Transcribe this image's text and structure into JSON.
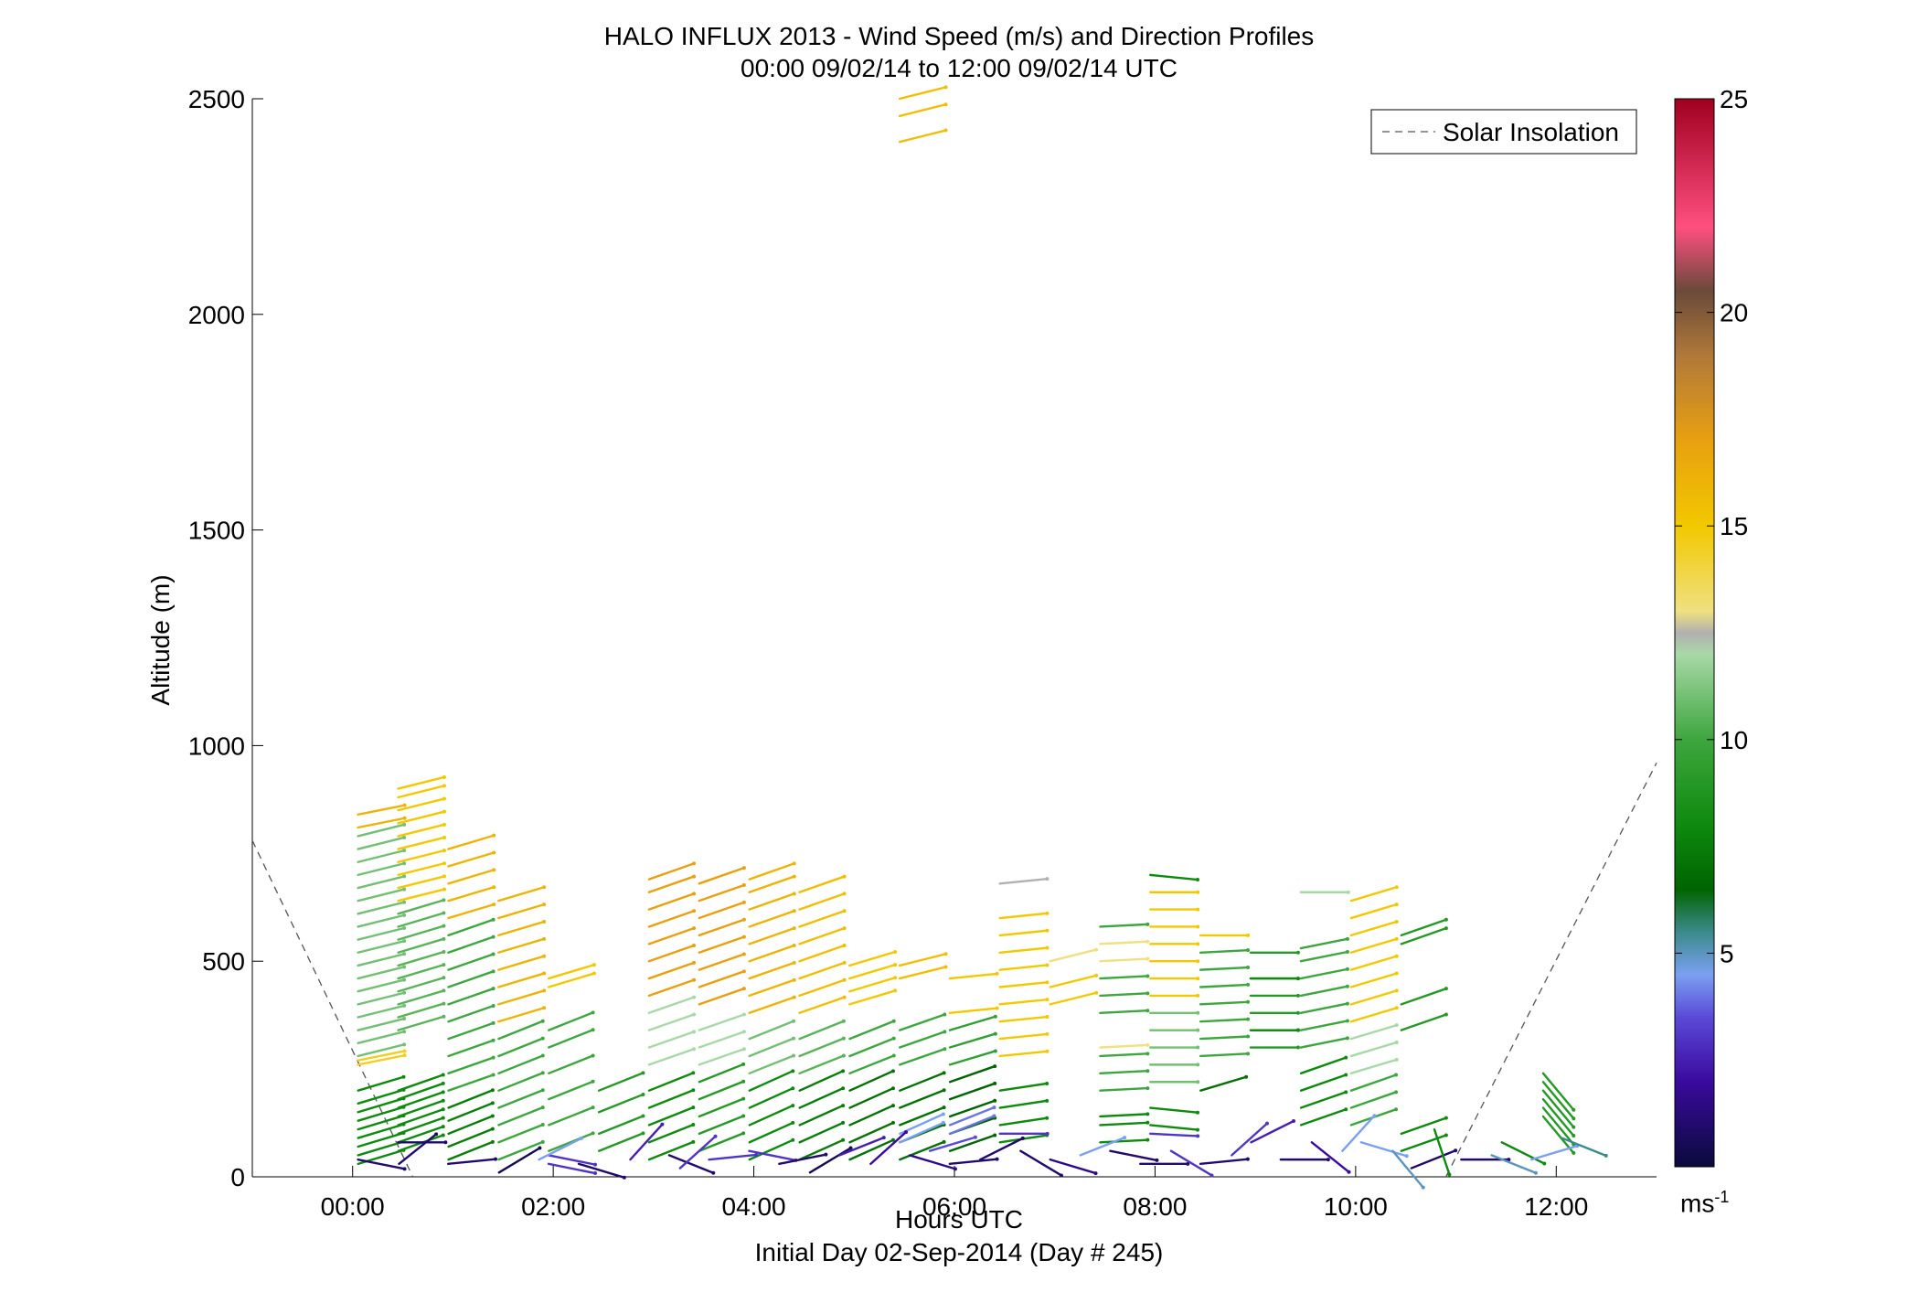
{
  "title_line1": "HALO INFLUX 2013 - Wind Speed (m/s) and Direction Profiles",
  "title_line2": "00:00 09/02/14 to 12:00 09/02/14  UTC",
  "footer": "Initial Day 02-Sep-2014 (Day # 245)",
  "colorbar_unit": "ms",
  "colorbar_unit_sup": "-1",
  "chart_data": {
    "type": "wind-barb profile",
    "xlabel": "Hours UTC",
    "ylabel": "Altitude (m)",
    "xlim": [
      -1,
      13
    ],
    "ylim": [
      0,
      2500
    ],
    "x_ticks": [
      0,
      2,
      4,
      6,
      8,
      10,
      12
    ],
    "x_tick_labels": [
      "00:00",
      "02:00",
      "04:00",
      "06:00",
      "08:00",
      "10:00",
      "12:00"
    ],
    "y_ticks": [
      0,
      500,
      1000,
      1500,
      2000,
      2500
    ],
    "y_tick_labels": [
      "0",
      "500",
      "1000",
      "1500",
      "2000",
      "2500"
    ],
    "legend": {
      "position": "top-right",
      "entries": [
        "Solar Insolation"
      ]
    },
    "colorbar": {
      "range": [
        0,
        25
      ],
      "ticks": [
        5,
        10,
        15,
        20,
        25
      ],
      "tick_labels": [
        "5",
        "10",
        "15",
        "20",
        "25"
      ],
      "stops": [
        {
          "v": 0,
          "c": "#0a0a3c"
        },
        {
          "v": 2,
          "c": "#3a0a9e"
        },
        {
          "v": 3.5,
          "c": "#5a4ad8"
        },
        {
          "v": 4.5,
          "c": "#7aa0f0"
        },
        {
          "v": 5.5,
          "c": "#3a8a8a"
        },
        {
          "v": 6.5,
          "c": "#006400"
        },
        {
          "v": 8,
          "c": "#0e8a0e"
        },
        {
          "v": 10,
          "c": "#3ea63e"
        },
        {
          "v": 12,
          "c": "#a8d8a8"
        },
        {
          "v": 12.5,
          "c": "#b0b0b0"
        },
        {
          "v": 13,
          "c": "#f0e080"
        },
        {
          "v": 15,
          "c": "#f2c800"
        },
        {
          "v": 17,
          "c": "#e8a010"
        },
        {
          "v": 19,
          "c": "#b0783a"
        },
        {
          "v": 20.5,
          "c": "#6a4a3a"
        },
        {
          "v": 22,
          "c": "#ff4f80"
        },
        {
          "v": 25,
          "c": "#a00020"
        }
      ]
    },
    "solar_insolation": [
      {
        "x": -1,
        "y": 780
      },
      {
        "x": 0.6,
        "y": 0
      },
      {
        "x": 10.9,
        "y": 0
      },
      {
        "x": 13,
        "y": 960
      }
    ],
    "profiles": [
      {
        "t": 0.1,
        "speed": 14.5,
        "slope": 0.2,
        "alts": [
          260,
          270
        ],
        "extra": [
          {
            "y": 810,
            "s": 16
          },
          {
            "y": 840,
            "s": 16
          }
        ]
      },
      {
        "t": 0.1,
        "speed": 11,
        "slope": 0.25,
        "alts": [
          280,
          310,
          340,
          370,
          400,
          430,
          460,
          490,
          520,
          550,
          580,
          610,
          640,
          670,
          700,
          730,
          760,
          790
        ]
      },
      {
        "t": 0.1,
        "speed": 8,
        "slope": 0.3,
        "alts": [
          30,
          50,
          70,
          90,
          110,
          130,
          150,
          170,
          200
        ]
      },
      {
        "t": 0.1,
        "speed": 1,
        "slope": -0.2,
        "alts": [
          40
        ]
      },
      {
        "t": 0.5,
        "speed": 15,
        "slope": 0.25,
        "alts": [
          640,
          670,
          700,
          730,
          760,
          790,
          820,
          850,
          880,
          900
        ]
      },
      {
        "t": 0.5,
        "speed": 10.5,
        "slope": 0.3,
        "alts": [
          340,
          370,
          400,
          430,
          460,
          490,
          520,
          550,
          580,
          610
        ]
      },
      {
        "t": 0.5,
        "speed": 8,
        "slope": 0.35,
        "alts": [
          60,
          80,
          100,
          120,
          140,
          160,
          180,
          200
        ]
      },
      {
        "t": 0.5,
        "speed": 1,
        "slope": 0,
        "alts": [
          80
        ]
      },
      {
        "t": 1.0,
        "speed": 16,
        "slope": 0.3,
        "alts": [
          600,
          640,
          680,
          720,
          760
        ]
      },
      {
        "t": 1.0,
        "speed": 10,
        "slope": 0.35,
        "alts": [
          200,
          240,
          280,
          320,
          360,
          400,
          440,
          480,
          520,
          560
        ]
      },
      {
        "t": 1.0,
        "speed": 7.5,
        "slope": 0.4,
        "alts": [
          40,
          70,
          100,
          130,
          160
        ]
      },
      {
        "t": 1.5,
        "speed": 16,
        "slope": 0.3,
        "alts": [
          360,
          400,
          440,
          480,
          520,
          560,
          600,
          640
        ]
      },
      {
        "t": 1.5,
        "speed": 10,
        "slope": 0.4,
        "alts": [
          40,
          80,
          120,
          160,
          200,
          240,
          280,
          320
        ]
      },
      {
        "t": 2.0,
        "speed": 15,
        "slope": 0.3,
        "alts": [
          440,
          460
        ]
      },
      {
        "t": 2.0,
        "speed": 10,
        "slope": 0.4,
        "alts": [
          60,
          120,
          180,
          240,
          300,
          340
        ]
      },
      {
        "t": 2.0,
        "speed": 3,
        "slope": -0.2,
        "alts": [
          30,
          50
        ]
      },
      {
        "t": 2.5,
        "speed": 9,
        "slope": 0.4,
        "alts": [
          60,
          100,
          150,
          200
        ]
      },
      {
        "t": 3.0,
        "speed": 17,
        "slope": 0.35,
        "alts": [
          420,
          460,
          500,
          540,
          580,
          620,
          660,
          690
        ]
      },
      {
        "t": 3.0,
        "speed": 12,
        "slope": 0.35,
        "alts": [
          260,
          300,
          340,
          380
        ]
      },
      {
        "t": 3.0,
        "speed": 8,
        "slope": 0.4,
        "alts": [
          40,
          80,
          120,
          160,
          200
        ]
      },
      {
        "t": 3.5,
        "speed": 17,
        "slope": 0.35,
        "alts": [
          400,
          440,
          480,
          520,
          560,
          600,
          640,
          680
        ]
      },
      {
        "t": 3.5,
        "speed": 12,
        "slope": 0.35,
        "alts": [
          260,
          300,
          340
        ]
      },
      {
        "t": 3.5,
        "speed": 9,
        "slope": 0.4,
        "alts": [
          60,
          100,
          140,
          180,
          220
        ]
      },
      {
        "t": 4.0,
        "speed": 16,
        "slope": 0.35,
        "alts": [
          380,
          420,
          460,
          500,
          540,
          580,
          620,
          660,
          690
        ]
      },
      {
        "t": 4.0,
        "speed": 11,
        "slope": 0.4,
        "alts": [
          240,
          280,
          320
        ]
      },
      {
        "t": 4.0,
        "speed": 8,
        "slope": 0.45,
        "alts": [
          40,
          80,
          120,
          160,
          200
        ]
      },
      {
        "t": 4.5,
        "speed": 15.5,
        "slope": 0.35,
        "alts": [
          380,
          420,
          460,
          500,
          540,
          580,
          620,
          660
        ]
      },
      {
        "t": 4.5,
        "speed": 10.5,
        "slope": 0.4,
        "alts": [
          240,
          280,
          320
        ]
      },
      {
        "t": 4.5,
        "speed": 7.5,
        "slope": 0.45,
        "alts": [
          40,
          80,
          120,
          160,
          200
        ]
      },
      {
        "t": 5.0,
        "speed": 15,
        "slope": 0.3,
        "alts": [
          400,
          430,
          460,
          490
        ]
      },
      {
        "t": 5.0,
        "speed": 10,
        "slope": 0.4,
        "alts": [
          240,
          280,
          320
        ]
      },
      {
        "t": 5.0,
        "speed": 7,
        "slope": 0.45,
        "alts": [
          40,
          80,
          120,
          160,
          200
        ]
      },
      {
        "t": 5.5,
        "speed": 15.5,
        "slope": 0.25,
        "alts": [
          460,
          490,
          2400,
          2460,
          2500
        ]
      },
      {
        "t": 5.5,
        "speed": 10,
        "slope": 0.35,
        "alts": [
          260,
          300,
          340
        ]
      },
      {
        "t": 5.5,
        "speed": 7,
        "slope": 0.4,
        "alts": [
          40,
          80,
          120,
          160,
          200
        ]
      },
      {
        "t": 5.5,
        "speed": 4.5,
        "slope": 0.45,
        "alts": [
          80,
          100
        ]
      },
      {
        "t": 6.0,
        "speed": 15,
        "slope": 0.1,
        "alts": [
          460,
          380
        ]
      },
      {
        "t": 6.0,
        "speed": 9.5,
        "slope": 0.3,
        "alts": [
          260,
          300,
          340
        ]
      },
      {
        "t": 6.0,
        "speed": 6.5,
        "slope": 0.35,
        "alts": [
          60,
          100,
          140,
          180,
          220
        ]
      },
      {
        "t": 6.0,
        "speed": 4,
        "slope": 0.4,
        "alts": [
          100,
          120
        ]
      },
      {
        "t": 6.5,
        "speed": 15,
        "slope": 0.1,
        "alts": [
          280,
          320,
          360,
          400,
          440,
          480,
          520,
          560,
          600
        ]
      },
      {
        "t": 6.5,
        "speed": 12.5,
        "slope": 0.1,
        "alts": [
          680
        ]
      },
      {
        "t": 6.5,
        "speed": 8,
        "slope": 0.15,
        "alts": [
          80,
          120,
          160,
          200
        ]
      },
      {
        "t": 6.5,
        "speed": 3,
        "slope": 0,
        "alts": [
          100
        ]
      },
      {
        "t": 7.0,
        "speed": 13,
        "slope": 0.25,
        "alts": [
          500
        ]
      },
      {
        "t": 7.0,
        "speed": 15,
        "slope": 0.25,
        "alts": [
          400,
          440
        ]
      },
      {
        "t": 7.5,
        "speed": 13,
        "slope": 0.05,
        "alts": [
          300,
          500,
          540
        ]
      },
      {
        "t": 7.5,
        "speed": 10,
        "slope": 0.05,
        "alts": [
          200,
          240,
          280,
          380,
          420,
          460,
          580
        ]
      },
      {
        "t": 7.5,
        "speed": 8,
        "slope": 0.05,
        "alts": [
          80,
          120,
          140
        ]
      },
      {
        "t": 8.0,
        "speed": 15,
        "slope": 0,
        "alts": [
          420,
          460,
          500,
          540,
          580,
          620,
          660
        ]
      },
      {
        "t": 8.0,
        "speed": 11,
        "slope": 0,
        "alts": [
          220,
          260,
          300,
          340,
          380
        ]
      },
      {
        "t": 8.0,
        "speed": 8,
        "slope": -0.1,
        "alts": [
          120,
          160,
          700
        ]
      },
      {
        "t": 8.0,
        "speed": 3,
        "slope": -0.05,
        "alts": [
          100
        ]
      },
      {
        "t": 8.5,
        "speed": 15,
        "slope": 0,
        "alts": [
          560
        ]
      },
      {
        "t": 8.5,
        "speed": 10,
        "slope": 0.05,
        "alts": [
          280,
          320,
          360,
          400,
          440,
          480,
          520
        ]
      },
      {
        "t": 8.5,
        "speed": 7,
        "slope": 0.3,
        "alts": [
          200
        ]
      },
      {
        "t": 9.0,
        "speed": 9,
        "slope": 0,
        "alts": [
          300,
          340,
          380,
          420,
          460,
          520
        ]
      },
      {
        "t": 9.0,
        "speed": 8,
        "slope": 0,
        "alts": [
          340,
          460
        ]
      },
      {
        "t": 9.5,
        "speed": 12,
        "slope": 0,
        "alts": [
          660
        ]
      },
      {
        "t": 9.5,
        "speed": 10,
        "slope": 0.2,
        "alts": [
          300,
          340,
          380,
          420,
          460,
          500,
          530
        ]
      },
      {
        "t": 9.5,
        "speed": 8,
        "slope": 0.35,
        "alts": [
          120,
          160,
          200,
          240
        ]
      },
      {
        "t": 10.0,
        "speed": 15,
        "slope": 0.3,
        "alts": [
          360,
          400,
          440,
          480,
          520,
          560,
          600,
          640
        ]
      },
      {
        "t": 10.0,
        "speed": 12,
        "slope": 0.3,
        "alts": [
          240,
          280,
          320
        ]
      },
      {
        "t": 10.0,
        "speed": 10,
        "slope": 0.35,
        "alts": [
          120,
          160,
          200
        ]
      },
      {
        "t": 10.5,
        "speed": 9,
        "slope": 0.35,
        "alts": [
          340,
          400,
          540,
          560
        ]
      },
      {
        "t": 10.5,
        "speed": 8,
        "slope": 0.35,
        "alts": [
          60,
          100
        ]
      },
      {
        "t": 11.9,
        "speed": 9,
        "slope": -1.2,
        "alts": [
          140,
          160,
          180,
          200,
          220,
          240
        ]
      }
    ],
    "low_level": [
      {
        "t": 0.5,
        "y": 30,
        "s": 1,
        "a": 0.8
      },
      {
        "t": 1.0,
        "y": 30,
        "s": 1,
        "a": 0.1
      },
      {
        "t": 1.5,
        "y": 10,
        "s": 0.5,
        "a": 0.6
      },
      {
        "t": 1.9,
        "y": 40,
        "s": 4.5,
        "a": 0.5
      },
      {
        "t": 2.3,
        "y": 30,
        "s": 1,
        "a": -0.3
      },
      {
        "t": 2.8,
        "y": 40,
        "s": 2.5,
        "a": 1.1
      },
      {
        "t": 3.2,
        "y": 50,
        "s": 1,
        "a": -0.4
      },
      {
        "t": 3.3,
        "y": 20,
        "s": 3,
        "a": 0.9
      },
      {
        "t": 3.6,
        "y": 40,
        "s": 3,
        "a": 0.1
      },
      {
        "t": 4.0,
        "y": 60,
        "s": 3,
        "a": -0.2
      },
      {
        "t": 4.3,
        "y": 30,
        "s": 1,
        "a": 0.2
      },
      {
        "t": 4.6,
        "y": 10,
        "s": 0.5,
        "a": 0.6
      },
      {
        "t": 4.9,
        "y": 50,
        "s": 2.5,
        "a": 0.4
      },
      {
        "t": 5.2,
        "y": 30,
        "s": 2,
        "a": 0.9
      },
      {
        "t": 5.6,
        "y": 50,
        "s": 1.5,
        "a": -0.3
      },
      {
        "t": 5.8,
        "y": 60,
        "s": 3.5,
        "a": 0.3
      },
      {
        "t": 6.0,
        "y": 30,
        "s": 1,
        "a": 0.1
      },
      {
        "t": 6.3,
        "y": 40,
        "s": 1,
        "a": 0.5
      },
      {
        "t": 6.7,
        "y": 60,
        "s": 1,
        "a": -0.6
      },
      {
        "t": 7.0,
        "y": 40,
        "s": 1.5,
        "a": -0.3
      },
      {
        "t": 7.3,
        "y": 50,
        "s": 4.5,
        "a": 0.4
      },
      {
        "t": 7.6,
        "y": 60,
        "s": 1,
        "a": -0.2
      },
      {
        "t": 7.9,
        "y": 30,
        "s": 1,
        "a": 0
      },
      {
        "t": 8.2,
        "y": 60,
        "s": 3,
        "a": -0.6
      },
      {
        "t": 8.5,
        "y": 30,
        "s": 1,
        "a": 0.1
      },
      {
        "t": 8.8,
        "y": 50,
        "s": 3,
        "a": 0.9
      },
      {
        "t": 9.0,
        "y": 80,
        "s": 2.5,
        "a": 0.5
      },
      {
        "t": 9.3,
        "y": 40,
        "s": 1,
        "a": 0
      },
      {
        "t": 9.6,
        "y": 80,
        "s": 2,
        "a": -0.8
      },
      {
        "t": 9.9,
        "y": 60,
        "s": 4.5,
        "a": 1.1
      },
      {
        "t": 10.1,
        "y": 80,
        "s": 4.5,
        "a": -0.3
      },
      {
        "t": 10.4,
        "y": 60,
        "s": 5,
        "a": -1.2
      },
      {
        "t": 10.6,
        "y": 20,
        "s": 1,
        "a": 0.4
      },
      {
        "t": 10.8,
        "y": 110,
        "s": 8,
        "a": -3
      },
      {
        "t": 11.1,
        "y": 40,
        "s": 1,
        "a": 0
      },
      {
        "t": 11.4,
        "y": 50,
        "s": 5,
        "a": -0.4
      },
      {
        "t": 11.5,
        "y": 80,
        "s": 8,
        "a": -0.5
      },
      {
        "t": 11.8,
        "y": 40,
        "s": 4.5,
        "a": 0.3
      },
      {
        "t": 12.1,
        "y": 90,
        "s": 5.5,
        "a": -0.4
      }
    ]
  }
}
